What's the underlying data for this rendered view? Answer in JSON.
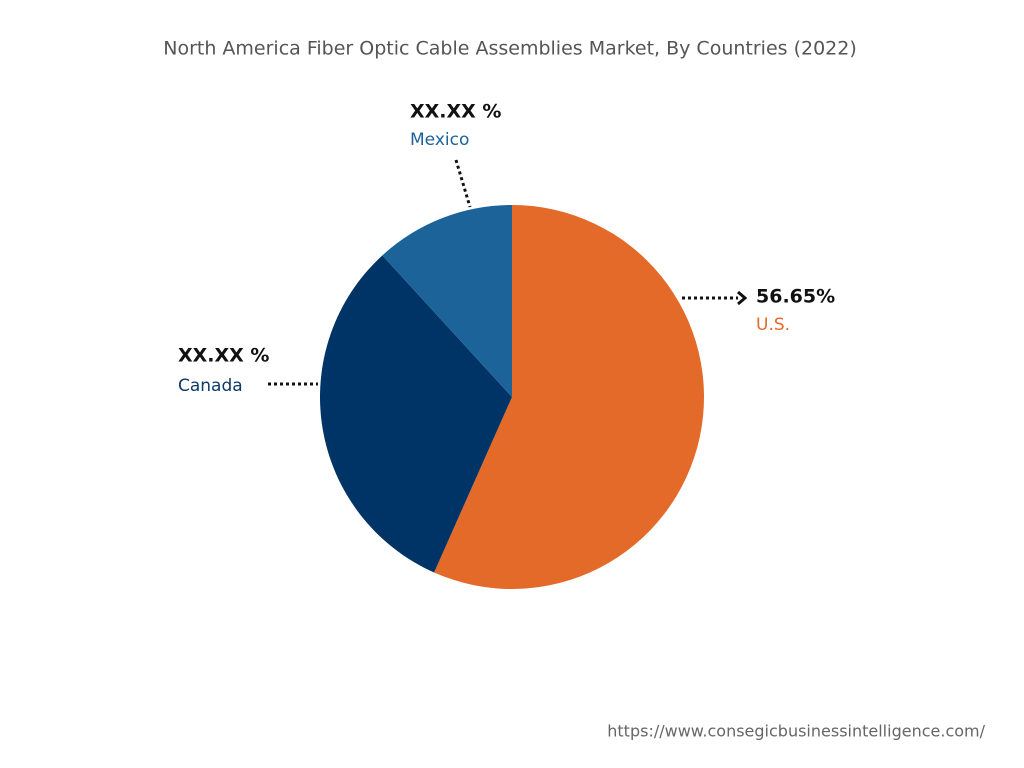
{
  "chart_data": {
    "type": "pie",
    "title": "North America Fiber Optic Cable Assemblies Market, By Countries (2022)",
    "categories": [
      "U.S.",
      "Canada",
      "Mexico"
    ],
    "values": [
      56.65,
      31.55,
      11.8
    ],
    "value_labels": [
      "56.65%",
      "XX.XX %",
      "XX.XX %"
    ],
    "colors": [
      "#e36a28",
      "#003466",
      "#1b6399"
    ],
    "source": "https://www.consegicbusinessintelligence.com/"
  }
}
